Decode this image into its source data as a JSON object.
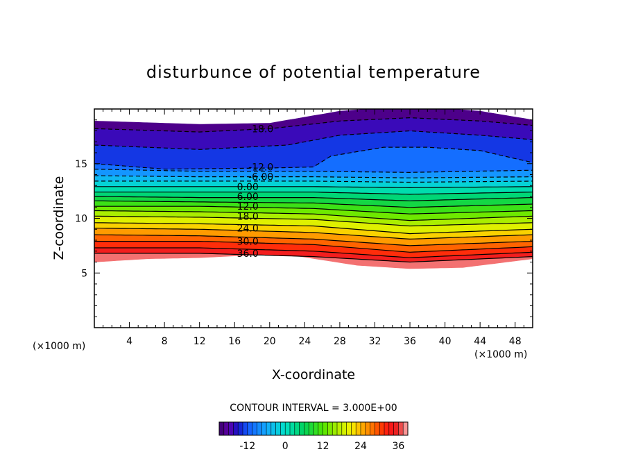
{
  "chart_data": {
    "type": "heatmap",
    "title": "disturbunce of potential temperature",
    "xlabel": "X-coordinate",
    "ylabel": "Z-coordinate",
    "x_unit": "(×1000 m)",
    "y_unit": "(×1000 m)",
    "xlim": [
      0,
      50
    ],
    "ylim": [
      0,
      20
    ],
    "x_ticks": [
      "4",
      "8",
      "12",
      "16",
      "20",
      "24",
      "28",
      "32",
      "36",
      "40",
      "44",
      "48"
    ],
    "y_ticks": [
      "5",
      "10",
      "15"
    ],
    "contour_interval_text": "CONTOUR INTERVAL = 3.000E+00",
    "contour_interval": 3,
    "contour_labels": [
      {
        "text": "-18.0",
        "x": 19,
        "z": 18.2
      },
      {
        "text": "-12.0",
        "x": 19,
        "z": 14.7
      },
      {
        "text": "-6.00",
        "x": 19,
        "z": 13.8
      },
      {
        "text": "0.00",
        "x": 17.5,
        "z": 12.9
      },
      {
        "text": "6.00",
        "x": 17.5,
        "z": 12.0
      },
      {
        "text": "12.0",
        "x": 17.5,
        "z": 11.1
      },
      {
        "text": "18.0",
        "x": 17.5,
        "z": 10.2
      },
      {
        "text": "24.0",
        "x": 17.5,
        "z": 9.1
      },
      {
        "text": "30.0",
        "x": 17.5,
        "z": 7.9
      },
      {
        "text": "36.0",
        "x": 17.5,
        "z": 6.8
      }
    ],
    "colorbar": {
      "ticks": [
        "-12",
        "0",
        "12",
        "24",
        "36"
      ],
      "min": -21,
      "max": 39
    },
    "field_bottom_z": [
      [
        0,
        6.0
      ],
      [
        6,
        6.3
      ],
      [
        12,
        6.4
      ],
      [
        17,
        6.6
      ],
      [
        22,
        6.7
      ],
      [
        30,
        5.7
      ],
      [
        36,
        5.4
      ],
      [
        42,
        5.5
      ],
      [
        50,
        6.3
      ]
    ],
    "field_top_z": [
      [
        0,
        18.9
      ],
      [
        12,
        18.6
      ],
      [
        20,
        18.7
      ],
      [
        28,
        19.8
      ],
      [
        36,
        20.3
      ],
      [
        44,
        19.8
      ],
      [
        50,
        19.0
      ]
    ],
    "contour_lines_z": [
      {
        "level": -18,
        "dashed": true,
        "points": [
          [
            0,
            18.2
          ],
          [
            12,
            17.9
          ],
          [
            20,
            18.2
          ],
          [
            28,
            18.9
          ],
          [
            36,
            19.2
          ],
          [
            44,
            18.9
          ],
          [
            50,
            18.5
          ]
        ]
      },
      {
        "level": -15,
        "dashed": true,
        "points": [
          [
            0,
            16.7
          ],
          [
            12,
            16.3
          ],
          [
            22,
            16.7
          ],
          [
            28,
            17.6
          ],
          [
            36,
            18.0
          ],
          [
            44,
            17.6
          ],
          [
            50,
            17.2
          ]
        ]
      },
      {
        "level": -12,
        "dashed": true,
        "points": [
          [
            0,
            15.0
          ],
          [
            8,
            14.5
          ],
          [
            20,
            14.6
          ],
          [
            25,
            14.7
          ],
          [
            27,
            15.7
          ],
          [
            33,
            16.5
          ],
          [
            38,
            16.5
          ],
          [
            44,
            16.2
          ],
          [
            50,
            15.1
          ]
        ]
      },
      {
        "level": -9,
        "dashed": true,
        "points": [
          [
            0,
            14.5
          ],
          [
            12,
            14.3
          ],
          [
            25,
            14.3
          ],
          [
            36,
            14.2
          ],
          [
            50,
            14.4
          ]
        ]
      },
      {
        "level": -6,
        "dashed": true,
        "points": [
          [
            0,
            13.9
          ],
          [
            12,
            13.8
          ],
          [
            25,
            13.8
          ],
          [
            36,
            13.7
          ],
          [
            50,
            13.8
          ]
        ]
      },
      {
        "level": -3,
        "dashed": true,
        "points": [
          [
            0,
            13.4
          ],
          [
            12,
            13.4
          ],
          [
            25,
            13.4
          ],
          [
            36,
            13.3
          ],
          [
            50,
            13.4
          ]
        ]
      },
      {
        "level": 0,
        "dashed": false,
        "points": [
          [
            0,
            12.9
          ],
          [
            12,
            12.9
          ],
          [
            25,
            12.9
          ],
          [
            36,
            12.8
          ],
          [
            50,
            12.9
          ]
        ]
      },
      {
        "level": 3,
        "dashed": false,
        "points": [
          [
            0,
            12.4
          ],
          [
            12,
            12.4
          ],
          [
            25,
            12.4
          ],
          [
            36,
            12.2
          ],
          [
            50,
            12.4
          ]
        ]
      },
      {
        "level": 6,
        "dashed": false,
        "points": [
          [
            0,
            12.0
          ],
          [
            12,
            11.9
          ],
          [
            25,
            11.9
          ],
          [
            36,
            11.6
          ],
          [
            50,
            11.9
          ]
        ]
      },
      {
        "level": 9,
        "dashed": false,
        "points": [
          [
            0,
            11.6
          ],
          [
            12,
            11.5
          ],
          [
            25,
            11.4
          ],
          [
            36,
            11.0
          ],
          [
            50,
            11.3
          ]
        ]
      },
      {
        "level": 12,
        "dashed": false,
        "points": [
          [
            0,
            11.1
          ],
          [
            12,
            11.1
          ],
          [
            25,
            10.9
          ],
          [
            36,
            10.4
          ],
          [
            50,
            10.7
          ]
        ]
      },
      {
        "level": 15,
        "dashed": false,
        "points": [
          [
            0,
            10.7
          ],
          [
            12,
            10.6
          ],
          [
            25,
            10.4
          ],
          [
            36,
            9.8
          ],
          [
            50,
            10.2
          ]
        ]
      },
      {
        "level": 18,
        "dashed": false,
        "points": [
          [
            0,
            10.2
          ],
          [
            12,
            10.1
          ],
          [
            25,
            9.9
          ],
          [
            36,
            9.3
          ],
          [
            50,
            9.6
          ]
        ]
      },
      {
        "level": 21,
        "dashed": false,
        "points": [
          [
            0,
            9.6
          ],
          [
            12,
            9.5
          ],
          [
            25,
            9.3
          ],
          [
            36,
            8.6
          ],
          [
            50,
            9.0
          ]
        ]
      },
      {
        "level": 24,
        "dashed": false,
        "points": [
          [
            0,
            9.1
          ],
          [
            12,
            9.0
          ],
          [
            25,
            8.7
          ],
          [
            36,
            8.1
          ],
          [
            50,
            8.5
          ]
        ]
      },
      {
        "level": 27,
        "dashed": false,
        "points": [
          [
            0,
            8.5
          ],
          [
            12,
            8.4
          ],
          [
            25,
            8.1
          ],
          [
            36,
            7.5
          ],
          [
            50,
            7.9
          ]
        ]
      },
      {
        "level": 30,
        "dashed": false,
        "points": [
          [
            0,
            7.9
          ],
          [
            12,
            7.9
          ],
          [
            25,
            7.6
          ],
          [
            36,
            6.9
          ],
          [
            50,
            7.4
          ]
        ]
      },
      {
        "level": 33,
        "dashed": false,
        "points": [
          [
            0,
            7.3
          ],
          [
            12,
            7.3
          ],
          [
            25,
            7.0
          ],
          [
            36,
            6.4
          ],
          [
            50,
            6.9
          ]
        ]
      },
      {
        "level": 36,
        "dashed": false,
        "points": [
          [
            0,
            6.8
          ],
          [
            12,
            6.8
          ],
          [
            25,
            6.5
          ],
          [
            36,
            6.0
          ],
          [
            50,
            6.5
          ]
        ]
      }
    ],
    "colors": {
      "low": "#6a00a8",
      "mid_cold": "#1e90ff",
      "zero": "#00e5c0",
      "mid_warm": "#e8f000",
      "high": "#ff1a1a",
      "top": "#ffb0b0"
    }
  }
}
